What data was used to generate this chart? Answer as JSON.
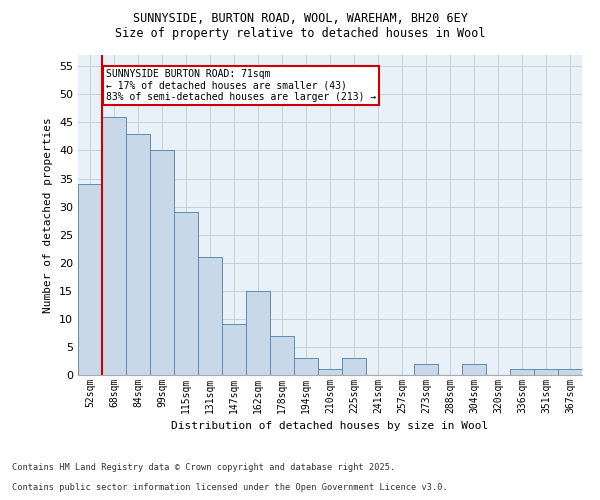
{
  "title_line1": "SUNNYSIDE, BURTON ROAD, WOOL, WAREHAM, BH20 6EY",
  "title_line2": "Size of property relative to detached houses in Wool",
  "xlabel": "Distribution of detached houses by size in Wool",
  "ylabel": "Number of detached properties",
  "categories": [
    "52sqm",
    "68sqm",
    "84sqm",
    "99sqm",
    "115sqm",
    "131sqm",
    "147sqm",
    "162sqm",
    "178sqm",
    "194sqm",
    "210sqm",
    "225sqm",
    "241sqm",
    "257sqm",
    "273sqm",
    "288sqm",
    "304sqm",
    "320sqm",
    "336sqm",
    "351sqm",
    "367sqm"
  ],
  "values": [
    34,
    46,
    43,
    40,
    29,
    21,
    9,
    15,
    7,
    3,
    1,
    3,
    0,
    0,
    2,
    0,
    2,
    0,
    1,
    1,
    1
  ],
  "bar_color": "#c8d8e8",
  "bar_edge_color": "#5a8db5",
  "grid_color": "#c0cfe0",
  "bg_color": "#e8f0f8",
  "annotation_text_line1": "SUNNYSIDE BURTON ROAD: 71sqm",
  "annotation_text_line2": "← 17% of detached houses are smaller (43)",
  "annotation_text_line3": "83% of semi-detached houses are larger (213) →",
  "annotation_box_color": "#ffffff",
  "annotation_border_color": "#cc0000",
  "vline_color": "#cc0000",
  "vline_x_index": 1,
  "ylim": [
    0,
    57
  ],
  "yticks": [
    0,
    5,
    10,
    15,
    20,
    25,
    30,
    35,
    40,
    45,
    50,
    55
  ],
  "footnote_line1": "Contains HM Land Registry data © Crown copyright and database right 2025.",
  "footnote_line2": "Contains public sector information licensed under the Open Government Licence v3.0."
}
